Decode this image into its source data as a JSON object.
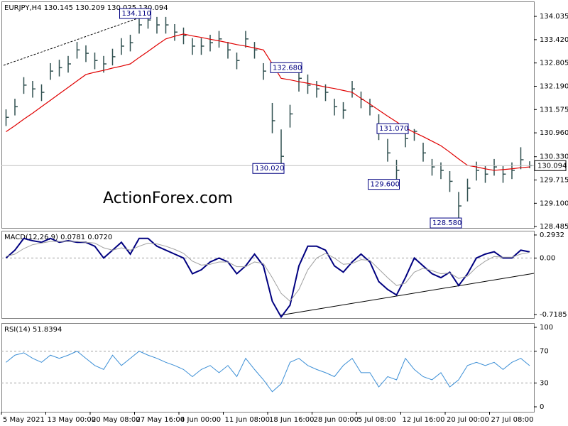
{
  "chart_data": [
    {
      "type": "hlc",
      "title": "EURJPY,H4  130.145 130.209 130.025 130.094",
      "watermark": "ActionForex.com",
      "color": "#2f4f4f",
      "categories": [
        "5 May 2021",
        null,
        null,
        null,
        null,
        "13 May 00:00",
        null,
        null,
        null,
        null,
        "20 May 08:00",
        null,
        null,
        null,
        null,
        "27 May 16:00",
        null,
        null,
        null,
        null,
        "4 Jun 00:00",
        null,
        null,
        null,
        null,
        "11 Jun 08:00",
        null,
        null,
        null,
        null,
        "18 Jun 16:00",
        null,
        null,
        null,
        null,
        "28 Jun 00:00",
        null,
        null,
        null,
        null,
        "5 Jul 08:00",
        null,
        null,
        null,
        null,
        "12 Jul 16:00",
        null,
        null,
        null,
        null,
        "20 Jul 00:00",
        null,
        null,
        null,
        null,
        "27 Jul 08:00",
        null,
        null,
        null,
        null
      ],
      "high": [
        131.58,
        131.86,
        132.43,
        132.33,
        132.24,
        132.8,
        132.89,
        132.99,
        133.36,
        133.27,
        133.08,
        132.99,
        133.18,
        133.46,
        133.55,
        134.02,
        134.11,
        134.02,
        134.02,
        133.83,
        133.74,
        133.46,
        133.46,
        133.55,
        133.65,
        133.36,
        133.08,
        133.65,
        133.36,
        132.8,
        131.75,
        131.05,
        131.7,
        132.68,
        132.5,
        132.33,
        132.24,
        131.86,
        131.77,
        132.33,
        132.05,
        131.86,
        131.45,
        130.8,
        130.25,
        131.07,
        131.06,
        130.7,
        130.27,
        130.18,
        129.95,
        129.4,
        129.75,
        130.2,
        130.08,
        130.27,
        130.08,
        130.18,
        130.58,
        130.209
      ],
      "low": [
        131.14,
        131.42,
        131.99,
        131.89,
        131.8,
        132.36,
        132.45,
        132.55,
        132.92,
        132.83,
        132.64,
        132.55,
        132.74,
        133.02,
        133.11,
        133.58,
        133.71,
        133.58,
        133.58,
        133.39,
        133.3,
        133.02,
        133.02,
        133.11,
        133.21,
        132.92,
        132.64,
        133.21,
        132.92,
        132.36,
        130.95,
        130.02,
        131.1,
        132.05,
        131.99,
        131.89,
        131.8,
        131.42,
        131.33,
        131.89,
        131.61,
        131.42,
        130.77,
        130.2,
        129.6,
        130.58,
        130.75,
        130.2,
        129.83,
        129.74,
        129.4,
        128.58,
        129.15,
        129.7,
        129.64,
        129.83,
        129.64,
        129.74,
        130.0,
        130.025
      ],
      "close": [
        131.37,
        131.65,
        132.22,
        132.12,
        132.03,
        132.59,
        132.68,
        132.78,
        133.15,
        133.06,
        132.87,
        132.78,
        132.97,
        133.25,
        133.34,
        133.81,
        133.94,
        133.81,
        133.81,
        133.62,
        133.53,
        133.25,
        133.25,
        133.34,
        133.44,
        133.15,
        132.87,
        133.44,
        133.15,
        132.59,
        131.28,
        130.34,
        131.46,
        132.4,
        132.22,
        132.12,
        132.03,
        131.65,
        131.56,
        132.12,
        131.84,
        131.65,
        131.0,
        130.43,
        129.97,
        130.81,
        131.0,
        130.43,
        130.06,
        129.97,
        129.68,
        129.03,
        129.5,
        129.97,
        129.87,
        130.06,
        129.87,
        129.97,
        130.25,
        130.094
      ],
      "ma": {
        "color": "#e00000",
        "values": [
          130.99,
          131.15,
          131.32,
          131.48,
          131.65,
          131.82,
          131.99,
          132.16,
          132.33,
          132.5,
          132.56,
          132.61,
          132.67,
          132.72,
          132.78,
          132.95,
          133.11,
          133.28,
          133.44,
          133.51,
          133.57,
          133.52,
          133.48,
          133.43,
          133.39,
          133.34,
          133.29,
          133.25,
          133.2,
          133.15,
          132.78,
          132.4,
          132.36,
          132.31,
          132.27,
          132.22,
          132.17,
          132.13,
          132.08,
          132.03,
          131.87,
          131.72,
          131.56,
          131.4,
          131.25,
          131.09,
          130.97,
          130.86,
          130.74,
          130.62,
          130.45,
          130.27,
          130.1,
          130.06,
          130.01,
          129.97,
          129.99,
          130.01,
          130.04,
          130.06
        ]
      },
      "annotations": [
        {
          "value": 134.11,
          "label": "134.110"
        },
        {
          "value": 130.02,
          "label": "130.020"
        },
        {
          "value": 132.68,
          "label": "132.680"
        },
        {
          "value": 129.6,
          "label": "129.600"
        },
        {
          "value": 131.07,
          "label": "131.070"
        },
        {
          "value": 128.58,
          "label": "128.580"
        }
      ],
      "ylim": [
        128.45,
        134.43
      ],
      "yticks": [
        134.035,
        {
          "value": 133.42,
          "label": "133.420"
        },
        132.805,
        {
          "value": 132.19,
          "label": "132.190"
        },
        131.575,
        {
          "value": 130.96,
          "label": "130.960"
        },
        {
          "value": 130.33,
          "label": "130.330"
        },
        129.715,
        {
          "value": 129.1,
          "label": "129.100"
        },
        128.485
      ]
    },
    {
      "type": "line",
      "title": "MACD(12,26,9) 0.0781 0.0720",
      "series": [
        {
          "color": "#000080",
          "width": 2,
          "values": [
            0.0,
            0.1,
            0.25,
            0.22,
            0.2,
            0.25,
            0.2,
            0.22,
            0.2,
            0.2,
            0.15,
            0.0,
            0.1,
            0.2,
            0.05,
            0.25,
            0.25,
            0.15,
            0.1,
            0.05,
            0.0,
            -0.2,
            -0.15,
            -0.05,
            0.0,
            -0.05,
            -0.2,
            -0.1,
            0.05,
            -0.1,
            -0.55,
            -0.75,
            -0.6,
            -0.1,
            0.15,
            0.15,
            0.1,
            -0.1,
            -0.18,
            -0.05,
            0.05,
            -0.05,
            -0.3,
            -0.4,
            -0.47,
            -0.25,
            0.0,
            -0.1,
            -0.2,
            -0.25,
            -0.18,
            -0.35,
            -0.2,
            0.0,
            0.05,
            0.08,
            0.0,
            0.0,
            0.1,
            0.0781
          ]
        },
        {
          "color": "#a0a0a0",
          "width": 1,
          "values": [
            0.02,
            0.05,
            0.12,
            0.17,
            0.19,
            0.21,
            0.21,
            0.21,
            0.21,
            0.2,
            0.19,
            0.13,
            0.1,
            0.13,
            0.1,
            0.15,
            0.19,
            0.18,
            0.15,
            0.11,
            0.06,
            -0.04,
            -0.09,
            -0.08,
            -0.05,
            -0.05,
            -0.11,
            -0.11,
            -0.05,
            -0.07,
            -0.25,
            -0.45,
            -0.55,
            -0.4,
            -0.15,
            0.0,
            0.06,
            0.0,
            -0.08,
            -0.07,
            -0.02,
            -0.03,
            -0.14,
            -0.25,
            -0.35,
            -0.32,
            -0.18,
            -0.13,
            -0.16,
            -0.2,
            -0.19,
            -0.26,
            -0.23,
            -0.12,
            -0.04,
            0.02,
            0.01,
            0.01,
            0.05,
            0.072
          ]
        }
      ],
      "level_lines": [
        0
      ],
      "ylim": [
        -0.764,
        0.347
      ],
      "yticks": [
        0.2932,
        {
          "value": 0,
          "label": "0.00"
        },
        -0.7185
      ]
    },
    {
      "type": "line",
      "title": "RSI(14) 51.8394",
      "series": [
        {
          "color": "#3c8fd6",
          "width": 1,
          "values": [
            56,
            65,
            68,
            61,
            56,
            65,
            61,
            65,
            70,
            61,
            52,
            47,
            65,
            52,
            61,
            70,
            65,
            61,
            56,
            52,
            47,
            38,
            47,
            52,
            43,
            52,
            38,
            61,
            47,
            34,
            19,
            29,
            56,
            61,
            52,
            47,
            43,
            38,
            52,
            61,
            43,
            43,
            25,
            38,
            34,
            61,
            47,
            38,
            34,
            43,
            25,
            34,
            52,
            56,
            52,
            56,
            47,
            56,
            61,
            51.8394
          ]
        }
      ],
      "level_lines": [
        70,
        30
      ],
      "ylim": [
        -6.25,
        105.4
      ],
      "yticks": [
        100,
        70,
        30,
        0
      ]
    }
  ]
}
